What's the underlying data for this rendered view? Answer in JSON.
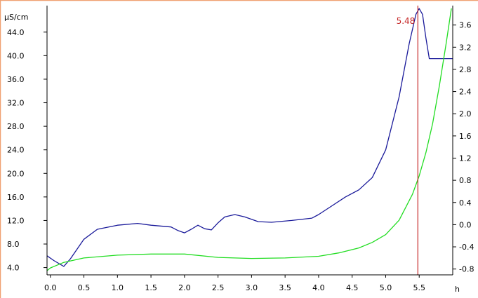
{
  "colors": {
    "frame_top": "#f0a070",
    "axis": "#000000",
    "series_conductivity": "#1a1a9a",
    "series_secondary": "#22dd22",
    "marker": "#c62828"
  },
  "chart_data": {
    "type": "line",
    "xlabel": "h",
    "ylabel": "µS/cm",
    "xlim": [
      -0.05,
      6.0
    ],
    "ylim_left": [
      3.0,
      48.5
    ],
    "ylim_right": [
      -0.88,
      3.95
    ],
    "x_ticks": [
      "0.0",
      "0.5",
      "1.0",
      "1.5",
      "2.0",
      "2.5",
      "3.0",
      "3.5",
      "4.0",
      "4.5",
      "5.0",
      "5.5"
    ],
    "y_ticks_left": [
      "4.0",
      "8.0",
      "12.0",
      "16.0",
      "20.0",
      "24.0",
      "28.0",
      "32.0",
      "36.0",
      "40.0",
      "44.0"
    ],
    "y_ticks_right": [
      "-0.8",
      "-0.4",
      "0.0",
      "0.4",
      "0.8",
      "1.2",
      "1.6",
      "2.0",
      "2.4",
      "2.8",
      "3.2",
      "3.6"
    ],
    "marker": {
      "x": 5.48,
      "label": "5.48"
    },
    "grid": false,
    "series": [
      {
        "axis": "left",
        "color": "#1a1a9a",
        "x": [
          -0.05,
          0.05,
          0.2,
          0.3,
          0.5,
          0.7,
          1.0,
          1.3,
          1.5,
          1.8,
          1.9,
          2.0,
          2.1,
          2.2,
          2.3,
          2.4,
          2.5,
          2.6,
          2.75,
          2.9,
          3.1,
          3.3,
          3.6,
          3.9,
          4.0,
          4.2,
          4.4,
          4.6,
          4.8,
          5.0,
          5.2,
          5.35,
          5.45,
          5.5,
          5.55,
          5.6,
          5.65,
          5.7,
          6.0
        ],
        "y": [
          6.0,
          5.2,
          4.2,
          5.5,
          8.8,
          10.5,
          11.2,
          11.5,
          11.2,
          10.9,
          10.3,
          9.9,
          10.5,
          11.2,
          10.6,
          10.4,
          11.6,
          12.6,
          13.0,
          12.6,
          11.8,
          11.7,
          12.0,
          12.4,
          13.0,
          14.5,
          16.0,
          17.2,
          19.3,
          24.0,
          33.0,
          42.0,
          47.0,
          48.0,
          47.0,
          43.0,
          39.5,
          39.5,
          39.5
        ]
      },
      {
        "axis": "right",
        "color": "#22dd22",
        "x": [
          -0.05,
          0.0,
          0.2,
          0.5,
          1.0,
          1.5,
          2.0,
          2.5,
          3.0,
          3.5,
          4.0,
          4.3,
          4.6,
          4.8,
          5.0,
          5.2,
          5.4,
          5.5,
          5.6,
          5.7,
          5.8,
          5.9,
          5.98
        ],
        "y": [
          -0.83,
          -0.78,
          -0.68,
          -0.6,
          -0.55,
          -0.53,
          -0.53,
          -0.59,
          -0.61,
          -0.6,
          -0.57,
          -0.51,
          -0.42,
          -0.32,
          -0.18,
          0.08,
          0.55,
          0.88,
          1.3,
          1.82,
          2.5,
          3.25,
          3.9
        ]
      }
    ]
  }
}
